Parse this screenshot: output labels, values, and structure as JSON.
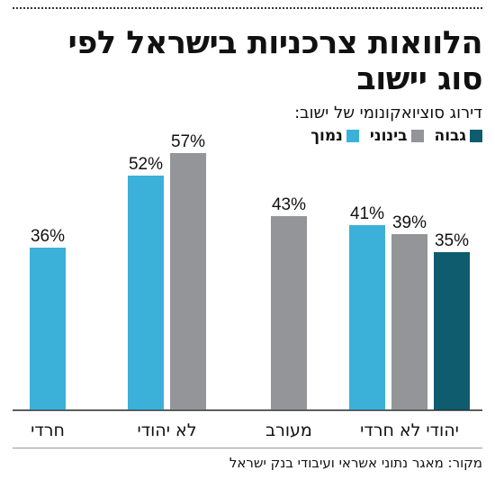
{
  "title": "הלוואות צרכניות בישראל לפי סוג יישוב",
  "legend_title": "דירוג סוציואקונומי של ישוב:",
  "colors": {
    "high": "#0e5c6e",
    "medium": "#939598",
    "low": "#3bb1d9"
  },
  "source": "מקור: מאגר נתוני אשראי ועיבודי בנק ישראל",
  "chart_data": {
    "type": "bar",
    "title": "הלוואות צרכניות בישראל לפי סוג יישוב",
    "legend_title": "דירוג סוציואקונומי של ישוב:",
    "legend_placement": "top-right",
    "grid": false,
    "ylim": [
      0,
      100
    ],
    "unit": "%",
    "categories": [
      "יהודי לא חרדי",
      "מעורב",
      "לא יהודי",
      "חרדי"
    ],
    "series": [
      {
        "name": "גבוה",
        "color": "#0e5c6e",
        "values": [
          35,
          null,
          null,
          null
        ]
      },
      {
        "name": "בינוני",
        "color": "#939598",
        "values": [
          39,
          43,
          57,
          null
        ]
      },
      {
        "name": "נמוך",
        "color": "#3bb1d9",
        "values": [
          41,
          null,
          52,
          36
        ]
      }
    ]
  }
}
